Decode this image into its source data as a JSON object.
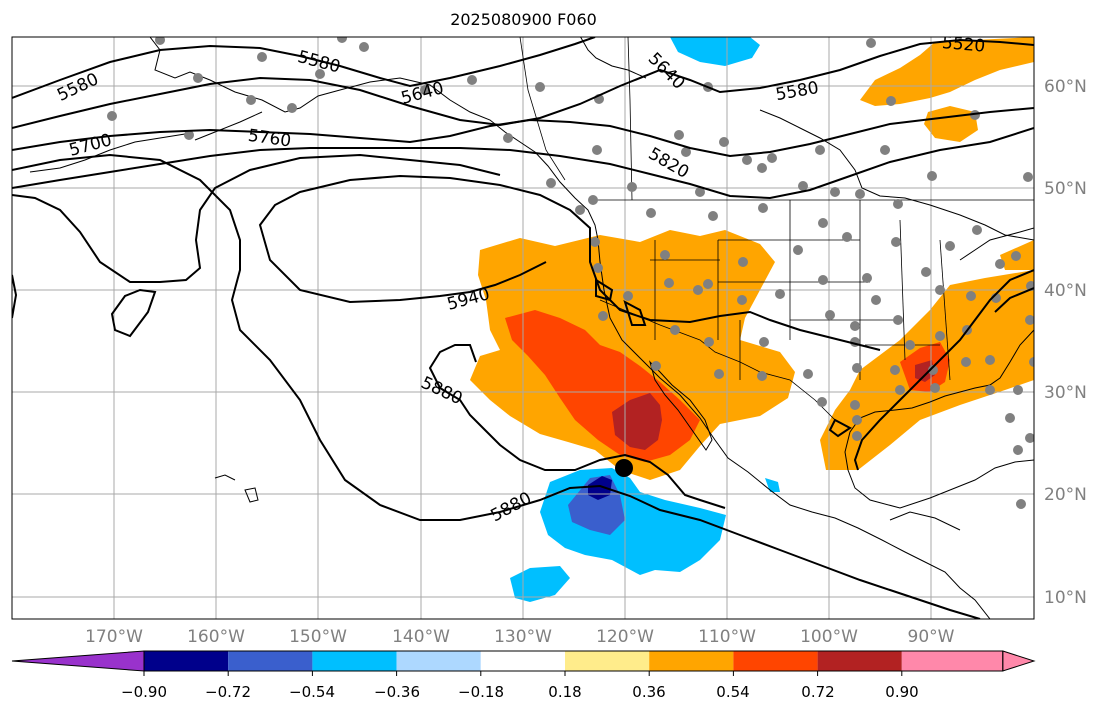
{
  "title": "2025080900 F060",
  "lon_labels": [
    "170°W",
    "160°W",
    "150°W",
    "140°W",
    "130°W",
    "120°W",
    "110°W",
    "100°W",
    "90°W"
  ],
  "lat_labels": [
    "60°N",
    "50°N",
    "40°N",
    "30°N",
    "20°N",
    "10°N"
  ],
  "contour_labels": [
    "5580",
    "5580",
    "5640",
    "5640",
    "5580",
    "5520",
    "5700",
    "5760",
    "5820",
    "5940",
    "5880",
    "5880"
  ],
  "colorbar": {
    "ticks": [
      "−0.90",
      "−0.72",
      "−0.54",
      "−0.36",
      "−0.18",
      "0.18",
      "0.36",
      "0.54",
      "0.72",
      "0.90"
    ],
    "colors": [
      "#9932cc",
      "#00008b",
      "#3a5fcd",
      "#00bfff",
      "#add8ff",
      "#ffffff",
      "#ffec8b",
      "#ffa500",
      "#ff4500",
      "#b22222",
      "#ff88aa"
    ]
  },
  "colors": {
    "orange": "#ffa500",
    "red": "#ff4500",
    "darkred": "#b22222",
    "lightblue": "#00bfff",
    "midblue": "#3a5fcd",
    "navy": "#00008b",
    "station": "#808080"
  }
}
